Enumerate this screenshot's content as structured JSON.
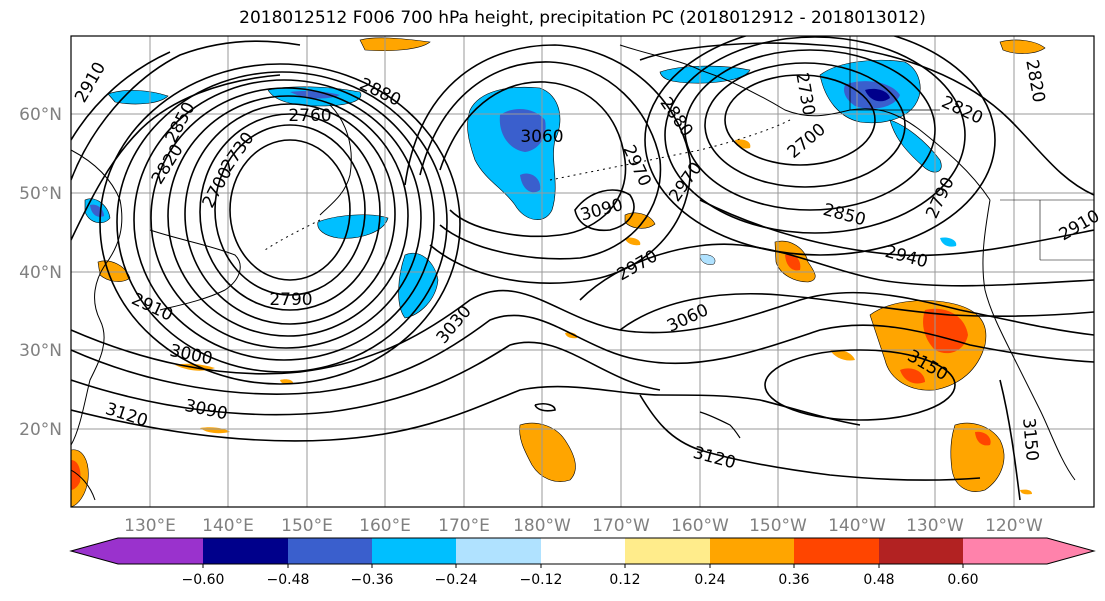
{
  "title": "2018012512 F006 700 hPa height, precipitation PC (2018012912 - 2018013012)",
  "lat_labels": [
    "60°N",
    "50°N",
    "40°N",
    "30°N",
    "20°N"
  ],
  "lon_labels": [
    "130°E",
    "140°E",
    "150°E",
    "160°E",
    "170°E",
    "180°W",
    "170°W",
    "160°W",
    "150°W",
    "140°W",
    "130°W",
    "120°W"
  ],
  "contour_labels": [
    "2910",
    "2850",
    "2880",
    "2820",
    "2730",
    "2760",
    "2700",
    "2790",
    "2910",
    "3000",
    "3090",
    "3120",
    "3060",
    "3030",
    "3090",
    "2970",
    "3060",
    "3120",
    "2880",
    "2970",
    "2970",
    "2700",
    "2730",
    "2790",
    "2850",
    "2940",
    "2820",
    "2820",
    "3150",
    "3150",
    "2910"
  ],
  "colorbar": {
    "ticks": [
      "−0.60",
      "−0.48",
      "−0.36",
      "−0.24",
      "−0.12",
      "0.12",
      "0.24",
      "0.36",
      "0.48",
      "0.60"
    ],
    "colors": [
      "#9a32cd",
      "#00008b",
      "#3a5fcd",
      "#00bfff",
      "#b0e2ff",
      "#ffffff",
      "#ffec8b",
      "#ffa500",
      "#ff4500",
      "#b22222",
      "#ff82ab"
    ]
  },
  "shading_colors": {
    "light_blue": "#b0e2ff",
    "blue": "#00bfff",
    "royal": "#3a5fcd",
    "navy": "#00008b",
    "yellow": "#ffec8b",
    "orange": "#ffa500",
    "red": "#ff4500",
    "darkred": "#b22222"
  }
}
